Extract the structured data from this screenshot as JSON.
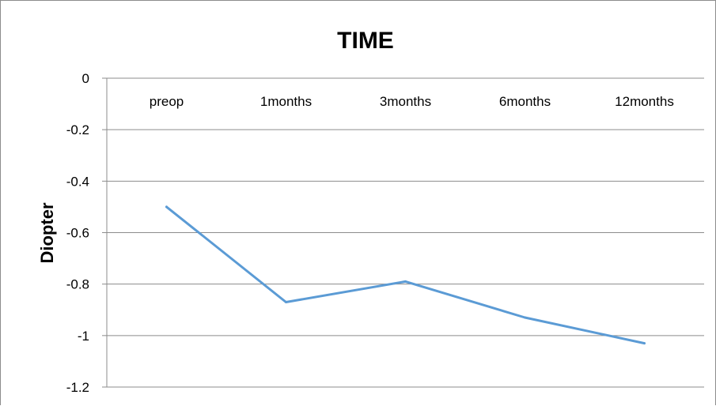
{
  "chart_data": {
    "type": "line",
    "title": "TIME",
    "ylabel": "Diopter",
    "xlabel": "",
    "categories": [
      "preop",
      "1months",
      "3months",
      "6months",
      "12months"
    ],
    "series": [
      {
        "values": [
          -0.5,
          -0.87,
          -0.79,
          -0.93,
          -1.03
        ]
      }
    ],
    "ylim": [
      -1.2,
      0
    ],
    "yticks": [
      "0",
      "-0.2",
      "-0.4",
      "-0.6",
      "-0.8",
      "-1",
      "-1.2"
    ],
    "grid": true,
    "legend": "none",
    "x_axis_position": "top",
    "line_color": "#5b9bd5",
    "grid_color": "#8c8c8c"
  }
}
